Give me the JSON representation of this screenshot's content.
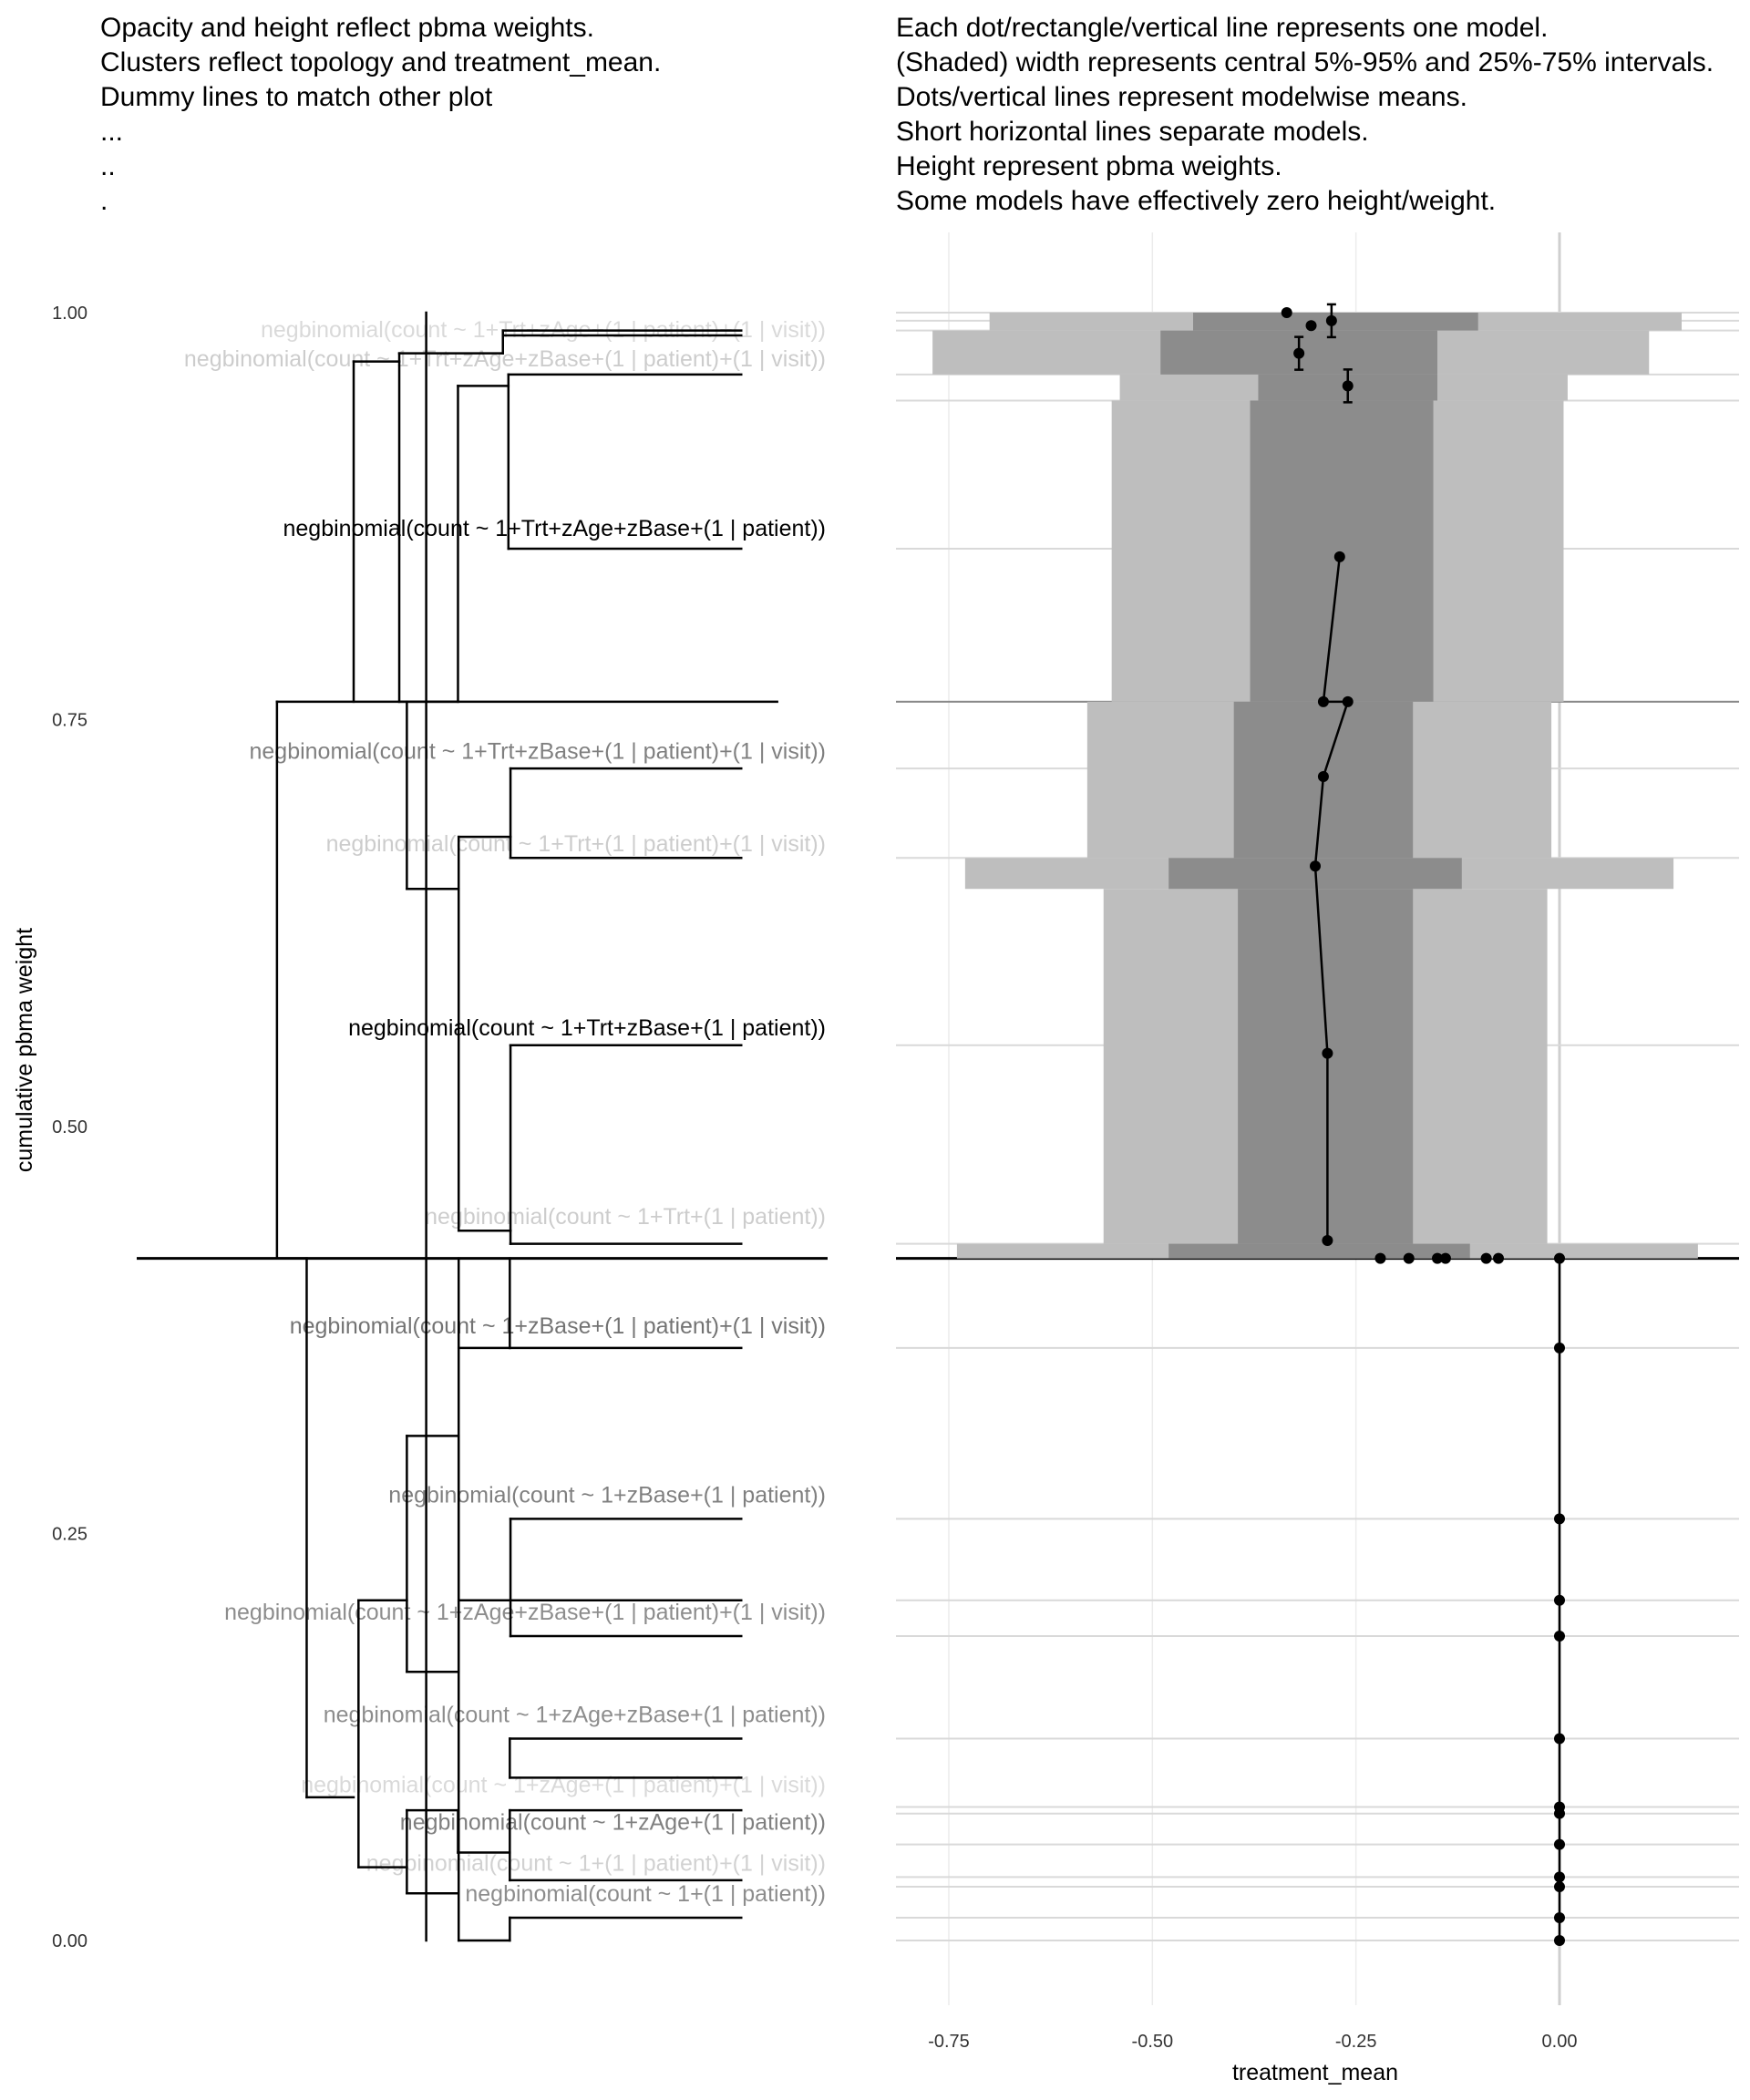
{
  "left_panel": {
    "caption_lines": [
      "Opacity and height reflect pbma weights.",
      "Clusters reflect topology and treatment_mean.",
      "Dummy lines to match other plot",
      "...",
      "..",
      "."
    ],
    "ylabel": "cumulative pbma weight"
  },
  "right_panel": {
    "caption_lines": [
      "Each dot/rectangle/vertical line represents one model.",
      "(Shaded) width represents central 5%-95% and 25%-75% intervals.",
      "Dots/vertical lines represent modelwise means.",
      "Short horizontal lines separate models.",
      "Height represent pbma weights.",
      "Some models have effectively zero height/weight."
    ],
    "xlabel": "treatment_mean"
  },
  "chart_data": [
    {
      "type": "dendrogram",
      "ylabel": "cumulative pbma weight",
      "ylim": [
        -0.12,
        1.05
      ],
      "y_ticks": [
        0.0,
        0.25,
        0.5,
        0.75,
        1.0
      ],
      "y_tick_labels": [
        "0.00",
        "0.25",
        "0.50",
        "0.75",
        "1.00"
      ],
      "leaf_labels": [
        {
          "label": "negbinomial(count ~ 1+Trt+zAge+(1 | patient)+(1 | visit))",
          "y": 0.99,
          "opacity": 0.15
        },
        {
          "label": "negbinomial(count ~ 1+Trt+zAge+zBase+(1 | patient)+(1 | visit))",
          "y": 0.972,
          "opacity": 0.2
        },
        {
          "label": "negbinomial(count ~ 1+Trt+zAge+zBase+(1 | patient))",
          "y": 0.868,
          "opacity": 1.0
        },
        {
          "label": "negbinomial(count ~ 1+Trt+zBase+(1 | patient)+(1 | visit))",
          "y": 0.731,
          "opacity": 0.5
        },
        {
          "label": "negbinomial(count ~ 1+Trt+(1 | patient)+(1 | visit))",
          "y": 0.674,
          "opacity": 0.2
        },
        {
          "label": "negbinomial(count ~ 1+Trt+zBase+(1 | patient))",
          "y": 0.561,
          "opacity": 1.0
        },
        {
          "label": "negbinomial(count ~ 1+Trt+(1 | patient))",
          "y": 0.445,
          "opacity": 0.2
        },
        {
          "label": "negbinomial(count ~ 1+zBase+(1 | patient)+(1 | visit))",
          "y": 0.378,
          "opacity": 0.55
        },
        {
          "label": "negbinomial(count ~ 1+zBase+(1 | patient))",
          "y": 0.274,
          "opacity": 0.5
        },
        {
          "label": "negbinomial(count ~ 1+zAge+zBase+(1 | patient)+(1 | visit))",
          "y": 0.202,
          "opacity": 0.45
        },
        {
          "label": "negbinomial(count ~ 1+zAge+zBase+(1 | patient))",
          "y": 0.139,
          "opacity": 0.45
        },
        {
          "label": "negbinomial(count ~ 1+zAge+(1 | patient)+(1 | visit))",
          "y": 0.096,
          "opacity": 0.15
        },
        {
          "label": "negbinomial(count ~ 1+zAge+(1 | patient))",
          "y": 0.073,
          "opacity": 0.5
        },
        {
          "label": "negbinomial(count ~ 1+(1 | patient)+(1 | visit))",
          "y": 0.048,
          "opacity": 0.18
        },
        {
          "label": "negbinomial(count ~ 1+(1 | patient))",
          "y": 0.029,
          "opacity": 0.45
        }
      ],
      "segments": [
        [
          0.419,
          0.419,
          0.0,
          1.0
        ],
        [
          0.203,
          0.203,
          0.419,
          0.761
        ],
        [
          0.203,
          0.927,
          0.761,
          0.761
        ],
        [
          0.203,
          0.246,
          0.419,
          0.419
        ],
        [
          0.246,
          0.246,
          0.419,
          0.088
        ],
        [
          0.246,
          0.314,
          0.088,
          0.088
        ],
        [
          0.314,
          0.314,
          0.761,
          0.97
        ],
        [
          0.314,
          0.38,
          0.97,
          0.97
        ],
        [
          0.38,
          0.38,
          0.761,
          0.975
        ],
        [
          0.38,
          0.53,
          0.975,
          0.975
        ],
        [
          0.53,
          0.53,
          0.975,
          0.989
        ],
        [
          0.53,
          0.875,
          0.989,
          0.989
        ],
        [
          0.53,
          0.875,
          0.986,
          0.986
        ],
        [
          0.38,
          0.465,
          0.761,
          0.761
        ],
        [
          0.465,
          0.465,
          0.761,
          0.955
        ],
        [
          0.465,
          0.538,
          0.955,
          0.955
        ],
        [
          0.538,
          0.538,
          0.855,
          0.962
        ],
        [
          0.538,
          0.875,
          0.962,
          0.962
        ],
        [
          0.538,
          0.875,
          0.855,
          0.855
        ],
        [
          0.391,
          0.391,
          0.646,
          0.761
        ],
        [
          0.391,
          0.466,
          0.646,
          0.646
        ],
        [
          0.466,
          0.466,
          0.436,
          0.678
        ],
        [
          0.466,
          0.541,
          0.678,
          0.678
        ],
        [
          0.541,
          0.541,
          0.665,
          0.72
        ],
        [
          0.541,
          0.875,
          0.72,
          0.72
        ],
        [
          0.541,
          0.875,
          0.665,
          0.665
        ],
        [
          0.466,
          0.541,
          0.436,
          0.436
        ],
        [
          0.541,
          0.541,
          0.428,
          0.55
        ],
        [
          0.541,
          0.875,
          0.55,
          0.55
        ],
        [
          0.541,
          0.875,
          0.428,
          0.428
        ],
        [
          0.466,
          0.466,
          0.0,
          0.419
        ],
        [
          0.466,
          0.54,
          0.0,
          0.0
        ],
        [
          0.54,
          0.54,
          0.0,
          0.014
        ],
        [
          0.54,
          0.875,
          0.014,
          0.014
        ],
        [
          0.466,
          0.54,
          0.364,
          0.364
        ],
        [
          0.54,
          0.54,
          0.364,
          0.419
        ],
        [
          0.54,
          0.875,
          0.364,
          0.364
        ],
        [
          0.321,
          0.321,
          0.045,
          0.209
        ],
        [
          0.321,
          0.391,
          0.209,
          0.209
        ],
        [
          0.391,
          0.391,
          0.165,
          0.31
        ],
        [
          0.391,
          0.466,
          0.31,
          0.31
        ],
        [
          0.466,
          0.466,
          0.165,
          0.31
        ],
        [
          0.391,
          0.466,
          0.165,
          0.165
        ],
        [
          0.466,
          0.541,
          0.209,
          0.209
        ],
        [
          0.541,
          0.541,
          0.187,
          0.259
        ],
        [
          0.541,
          0.875,
          0.259,
          0.259
        ],
        [
          0.541,
          0.875,
          0.209,
          0.209
        ],
        [
          0.541,
          0.875,
          0.187,
          0.187
        ],
        [
          0.321,
          0.391,
          0.045,
          0.045
        ],
        [
          0.391,
          0.391,
          0.029,
          0.08
        ],
        [
          0.391,
          0.465,
          0.08,
          0.08
        ],
        [
          0.465,
          0.465,
          0.054,
          0.08
        ],
        [
          0.465,
          0.54,
          0.054,
          0.054
        ],
        [
          0.54,
          0.54,
          0.037,
          0.08
        ],
        [
          0.54,
          0.875,
          0.08,
          0.08
        ],
        [
          0.54,
          0.875,
          0.037,
          0.037
        ],
        [
          0.54,
          0.54,
          0.1,
          0.124
        ],
        [
          0.54,
          0.875,
          0.124,
          0.124
        ],
        [
          0.54,
          0.875,
          0.1,
          0.1
        ],
        [
          0.391,
          0.465,
          0.029,
          0.029
        ]
      ]
    },
    {
      "type": "interval",
      "xlabel": "treatment_mean",
      "xlim": [
        -0.82,
        0.22
      ],
      "x_ticks": [
        -0.75,
        -0.5,
        -0.25,
        0.0
      ],
      "x_tick_labels": [
        "-0.75",
        "-0.50",
        "-0.25",
        "0.00"
      ],
      "ylim": [
        -0.12,
        1.05
      ],
      "bands_outer": [
        {
          "y0": 0.989,
          "y1": 1.0,
          "x0": -0.7,
          "x1": 0.15
        },
        {
          "y0": 0.962,
          "y1": 0.989,
          "x0": -0.77,
          "x1": 0.11
        },
        {
          "y0": 0.946,
          "y1": 0.962,
          "x0": -0.54,
          "x1": 0.01
        },
        {
          "y0": 0.761,
          "y1": 0.946,
          "x0": -0.55,
          "x1": 0.005
        },
        {
          "y0": 0.665,
          "y1": 0.761,
          "x0": -0.58,
          "x1": -0.01
        },
        {
          "y0": 0.646,
          "y1": 0.665,
          "x0": -0.73,
          "x1": 0.14
        },
        {
          "y0": 0.428,
          "y1": 0.646,
          "x0": -0.56,
          "x1": -0.015
        },
        {
          "y0": 0.419,
          "y1": 0.428,
          "x0": -0.74,
          "x1": 0.17
        }
      ],
      "bands_inner": [
        {
          "y0": 0.989,
          "y1": 1.0,
          "x0": -0.45,
          "x1": -0.1
        },
        {
          "y0": 0.962,
          "y1": 0.989,
          "x0": -0.49,
          "x1": -0.15
        },
        {
          "y0": 0.946,
          "y1": 0.962,
          "x0": -0.37,
          "x1": -0.15
        },
        {
          "y0": 0.761,
          "y1": 0.946,
          "x0": -0.38,
          "x1": -0.155
        },
        {
          "y0": 0.665,
          "y1": 0.761,
          "x0": -0.4,
          "x1": -0.18
        },
        {
          "y0": 0.646,
          "y1": 0.665,
          "x0": -0.48,
          "x1": -0.12
        },
        {
          "y0": 0.428,
          "y1": 0.646,
          "x0": -0.395,
          "x1": -0.18
        },
        {
          "y0": 0.419,
          "y1": 0.428,
          "x0": -0.48,
          "x1": -0.11
        }
      ],
      "means_upper": [
        {
          "x": -0.335,
          "y": 1.0
        },
        {
          "x": -0.305,
          "y": 0.992
        },
        {
          "x": -0.28,
          "y": 0.995
        },
        {
          "x": -0.32,
          "y": 0.975
        },
        {
          "x": -0.26,
          "y": 0.955
        },
        {
          "x": -0.27,
          "y": 0.85
        },
        {
          "x": -0.29,
          "y": 0.761
        },
        {
          "x": -0.26,
          "y": 0.761
        },
        {
          "x": -0.29,
          "y": 0.715
        },
        {
          "x": -0.3,
          "y": 0.66
        },
        {
          "x": -0.285,
          "y": 0.545
        },
        {
          "x": -0.285,
          "y": 0.43
        }
      ],
      "means_lower": [
        {
          "x": -0.22,
          "y": 0.419
        },
        {
          "x": -0.185,
          "y": 0.419
        },
        {
          "x": -0.15,
          "y": 0.419
        },
        {
          "x": -0.14,
          "y": 0.419
        },
        {
          "x": -0.09,
          "y": 0.419
        },
        {
          "x": -0.075,
          "y": 0.419
        },
        {
          "x": 0.0,
          "y": 0.419
        },
        {
          "x": 0.0,
          "y": 0.364
        },
        {
          "x": 0.0,
          "y": 0.259
        },
        {
          "x": 0.0,
          "y": 0.209
        },
        {
          "x": 0.0,
          "y": 0.187
        },
        {
          "x": 0.0,
          "y": 0.124
        },
        {
          "x": 0.0,
          "y": 0.082
        },
        {
          "x": 0.0,
          "y": 0.078
        },
        {
          "x": 0.0,
          "y": 0.059
        },
        {
          "x": 0.0,
          "y": 0.039
        },
        {
          "x": 0.0,
          "y": 0.033
        },
        {
          "x": 0.0,
          "y": 0.014
        },
        {
          "x": 0.0,
          "y": 0.0
        }
      ],
      "separators": [
        1.0,
        0.995,
        0.989,
        0.962,
        0.946,
        0.855,
        0.761,
        0.72,
        0.665,
        0.55,
        0.428,
        0.364,
        0.259,
        0.209,
        0.187,
        0.124,
        0.082,
        0.078,
        0.059,
        0.039,
        0.033,
        0.014,
        0.0
      ]
    }
  ]
}
